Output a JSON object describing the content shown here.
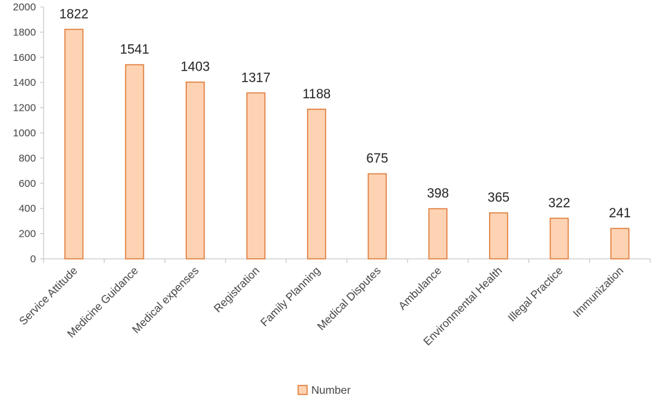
{
  "chart_data": {
    "type": "bar",
    "title": "",
    "xlabel": "",
    "ylabel": "",
    "categories": [
      "Service Attitude",
      "Medicine Guidance",
      "Medical expenses",
      "Registration",
      "Family Planning",
      "Medical Disputes",
      "Ambulance",
      "Environmental Health",
      "Illegal Practice",
      "Immunization"
    ],
    "series": [
      {
        "name": "Number",
        "values": [
          1822,
          1541,
          1403,
          1317,
          1188,
          675,
          398,
          365,
          322,
          241
        ]
      }
    ],
    "ylim": [
      0,
      2000
    ],
    "yticks": [
      "0",
      "200",
      "400",
      "600",
      "800",
      "1000",
      "1200",
      "1400",
      "1600",
      "1800",
      "2000"
    ],
    "grid": false,
    "data_labels": true,
    "legend_position": "bottom",
    "colors": {
      "bar_fill": "#fdd3b3",
      "bar_stroke": "#e07b39",
      "axis": "#bfbfbf"
    }
  }
}
